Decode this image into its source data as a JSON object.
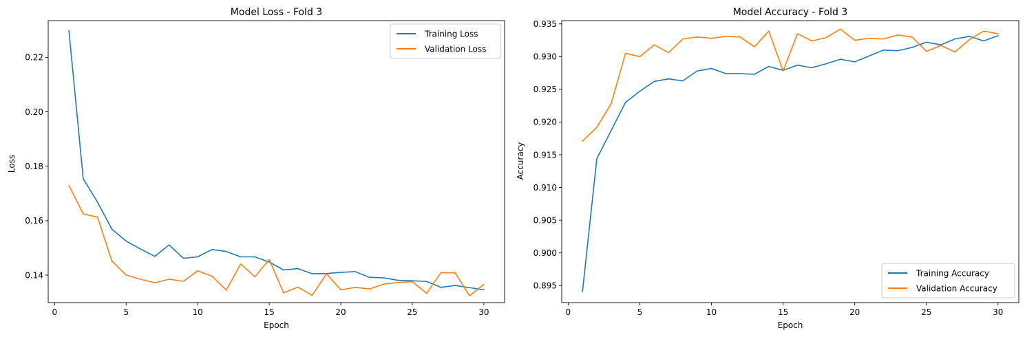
{
  "colors": {
    "training": "#1f77b4",
    "validation": "#ff7f0e",
    "axes": "#000000",
    "legend_border": "#cccccc"
  },
  "chart_data": [
    {
      "type": "line",
      "title": "Model Loss - Fold 3",
      "xlabel": "Epoch",
      "ylabel": "Loss",
      "xlim": [
        -0.45,
        31.45
      ],
      "ylim": [
        0.1299,
        0.2335
      ],
      "xticks": [
        0,
        5,
        10,
        15,
        20,
        25,
        30
      ],
      "xtick_labels": [
        "0",
        "5",
        "10",
        "15",
        "20",
        "25",
        "30"
      ],
      "yticks": [
        0.14,
        0.16,
        0.18,
        0.2,
        0.22
      ],
      "ytick_labels": [
        "0.14",
        "0.16",
        "0.18",
        "0.20",
        "0.22"
      ],
      "legend_position": "upper right",
      "grid": false,
      "x": [
        1,
        2,
        3,
        4,
        5,
        6,
        7,
        8,
        9,
        10,
        11,
        12,
        13,
        14,
        15,
        16,
        17,
        18,
        19,
        20,
        21,
        22,
        23,
        24,
        25,
        26,
        27,
        28,
        29,
        30
      ],
      "series": [
        {
          "name": "Training Loss",
          "color": "#1f77b4",
          "values": [
            0.2298,
            0.1754,
            0.1668,
            0.1569,
            0.1525,
            0.1496,
            0.1469,
            0.1511,
            0.1462,
            0.1467,
            0.1494,
            0.1487,
            0.1467,
            0.1467,
            0.1448,
            0.1419,
            0.1424,
            0.1405,
            0.1406,
            0.141,
            0.1413,
            0.1392,
            0.139,
            0.1381,
            0.1379,
            0.1377,
            0.1355,
            0.1362,
            0.1354,
            0.1346
          ]
        },
        {
          "name": "Validation Loss",
          "color": "#ff7f0e",
          "values": [
            0.1729,
            0.1625,
            0.1613,
            0.1452,
            0.14,
            0.1385,
            0.1372,
            0.1385,
            0.1377,
            0.1416,
            0.1396,
            0.1345,
            0.1441,
            0.1394,
            0.1457,
            0.1335,
            0.1356,
            0.1326,
            0.1405,
            0.1346,
            0.1355,
            0.1349,
            0.1367,
            0.1373,
            0.1376,
            0.1333,
            0.1409,
            0.1408,
            0.1324,
            0.1366
          ]
        }
      ]
    },
    {
      "type": "line",
      "title": "Model Accuracy - Fold 3",
      "xlabel": "Epoch",
      "ylabel": "Accuracy",
      "xlim": [
        -0.45,
        31.45
      ],
      "ylim": [
        0.8924,
        0.9355
      ],
      "xticks": [
        0,
        5,
        10,
        15,
        20,
        25,
        30
      ],
      "xtick_labels": [
        "0",
        "5",
        "10",
        "15",
        "20",
        "25",
        "30"
      ],
      "yticks": [
        0.895,
        0.9,
        0.905,
        0.91,
        0.915,
        0.92,
        0.925,
        0.93,
        0.935
      ],
      "ytick_labels": [
        "0.895",
        "0.900",
        "0.905",
        "0.910",
        "0.915",
        "0.920",
        "0.925",
        "0.930",
        "0.935"
      ],
      "legend_position": "lower right",
      "grid": false,
      "x": [
        1,
        2,
        3,
        4,
        5,
        6,
        7,
        8,
        9,
        10,
        11,
        12,
        13,
        14,
        15,
        16,
        17,
        18,
        19,
        20,
        21,
        22,
        23,
        24,
        25,
        26,
        27,
        28,
        29,
        30
      ],
      "series": [
        {
          "name": "Training Accuracy",
          "color": "#1f77b4",
          "values": [
            0.8941,
            0.9144,
            0.9187,
            0.923,
            0.9247,
            0.9262,
            0.9266,
            0.9263,
            0.9278,
            0.9282,
            0.9274,
            0.9274,
            0.9273,
            0.9285,
            0.9279,
            0.9287,
            0.9283,
            0.9289,
            0.9296,
            0.9292,
            0.9301,
            0.931,
            0.9309,
            0.9314,
            0.9322,
            0.9318,
            0.9327,
            0.9331,
            0.9324,
            0.9332
          ]
        },
        {
          "name": "Validation Accuracy",
          "color": "#ff7f0e",
          "values": [
            0.9171,
            0.9192,
            0.9228,
            0.9305,
            0.93,
            0.9318,
            0.9306,
            0.9327,
            0.933,
            0.9328,
            0.9331,
            0.933,
            0.9315,
            0.9339,
            0.9278,
            0.9335,
            0.9324,
            0.9329,
            0.9342,
            0.9325,
            0.9328,
            0.9327,
            0.9333,
            0.933,
            0.9308,
            0.9317,
            0.9307,
            0.9326,
            0.9339,
            0.9335
          ]
        }
      ]
    }
  ]
}
